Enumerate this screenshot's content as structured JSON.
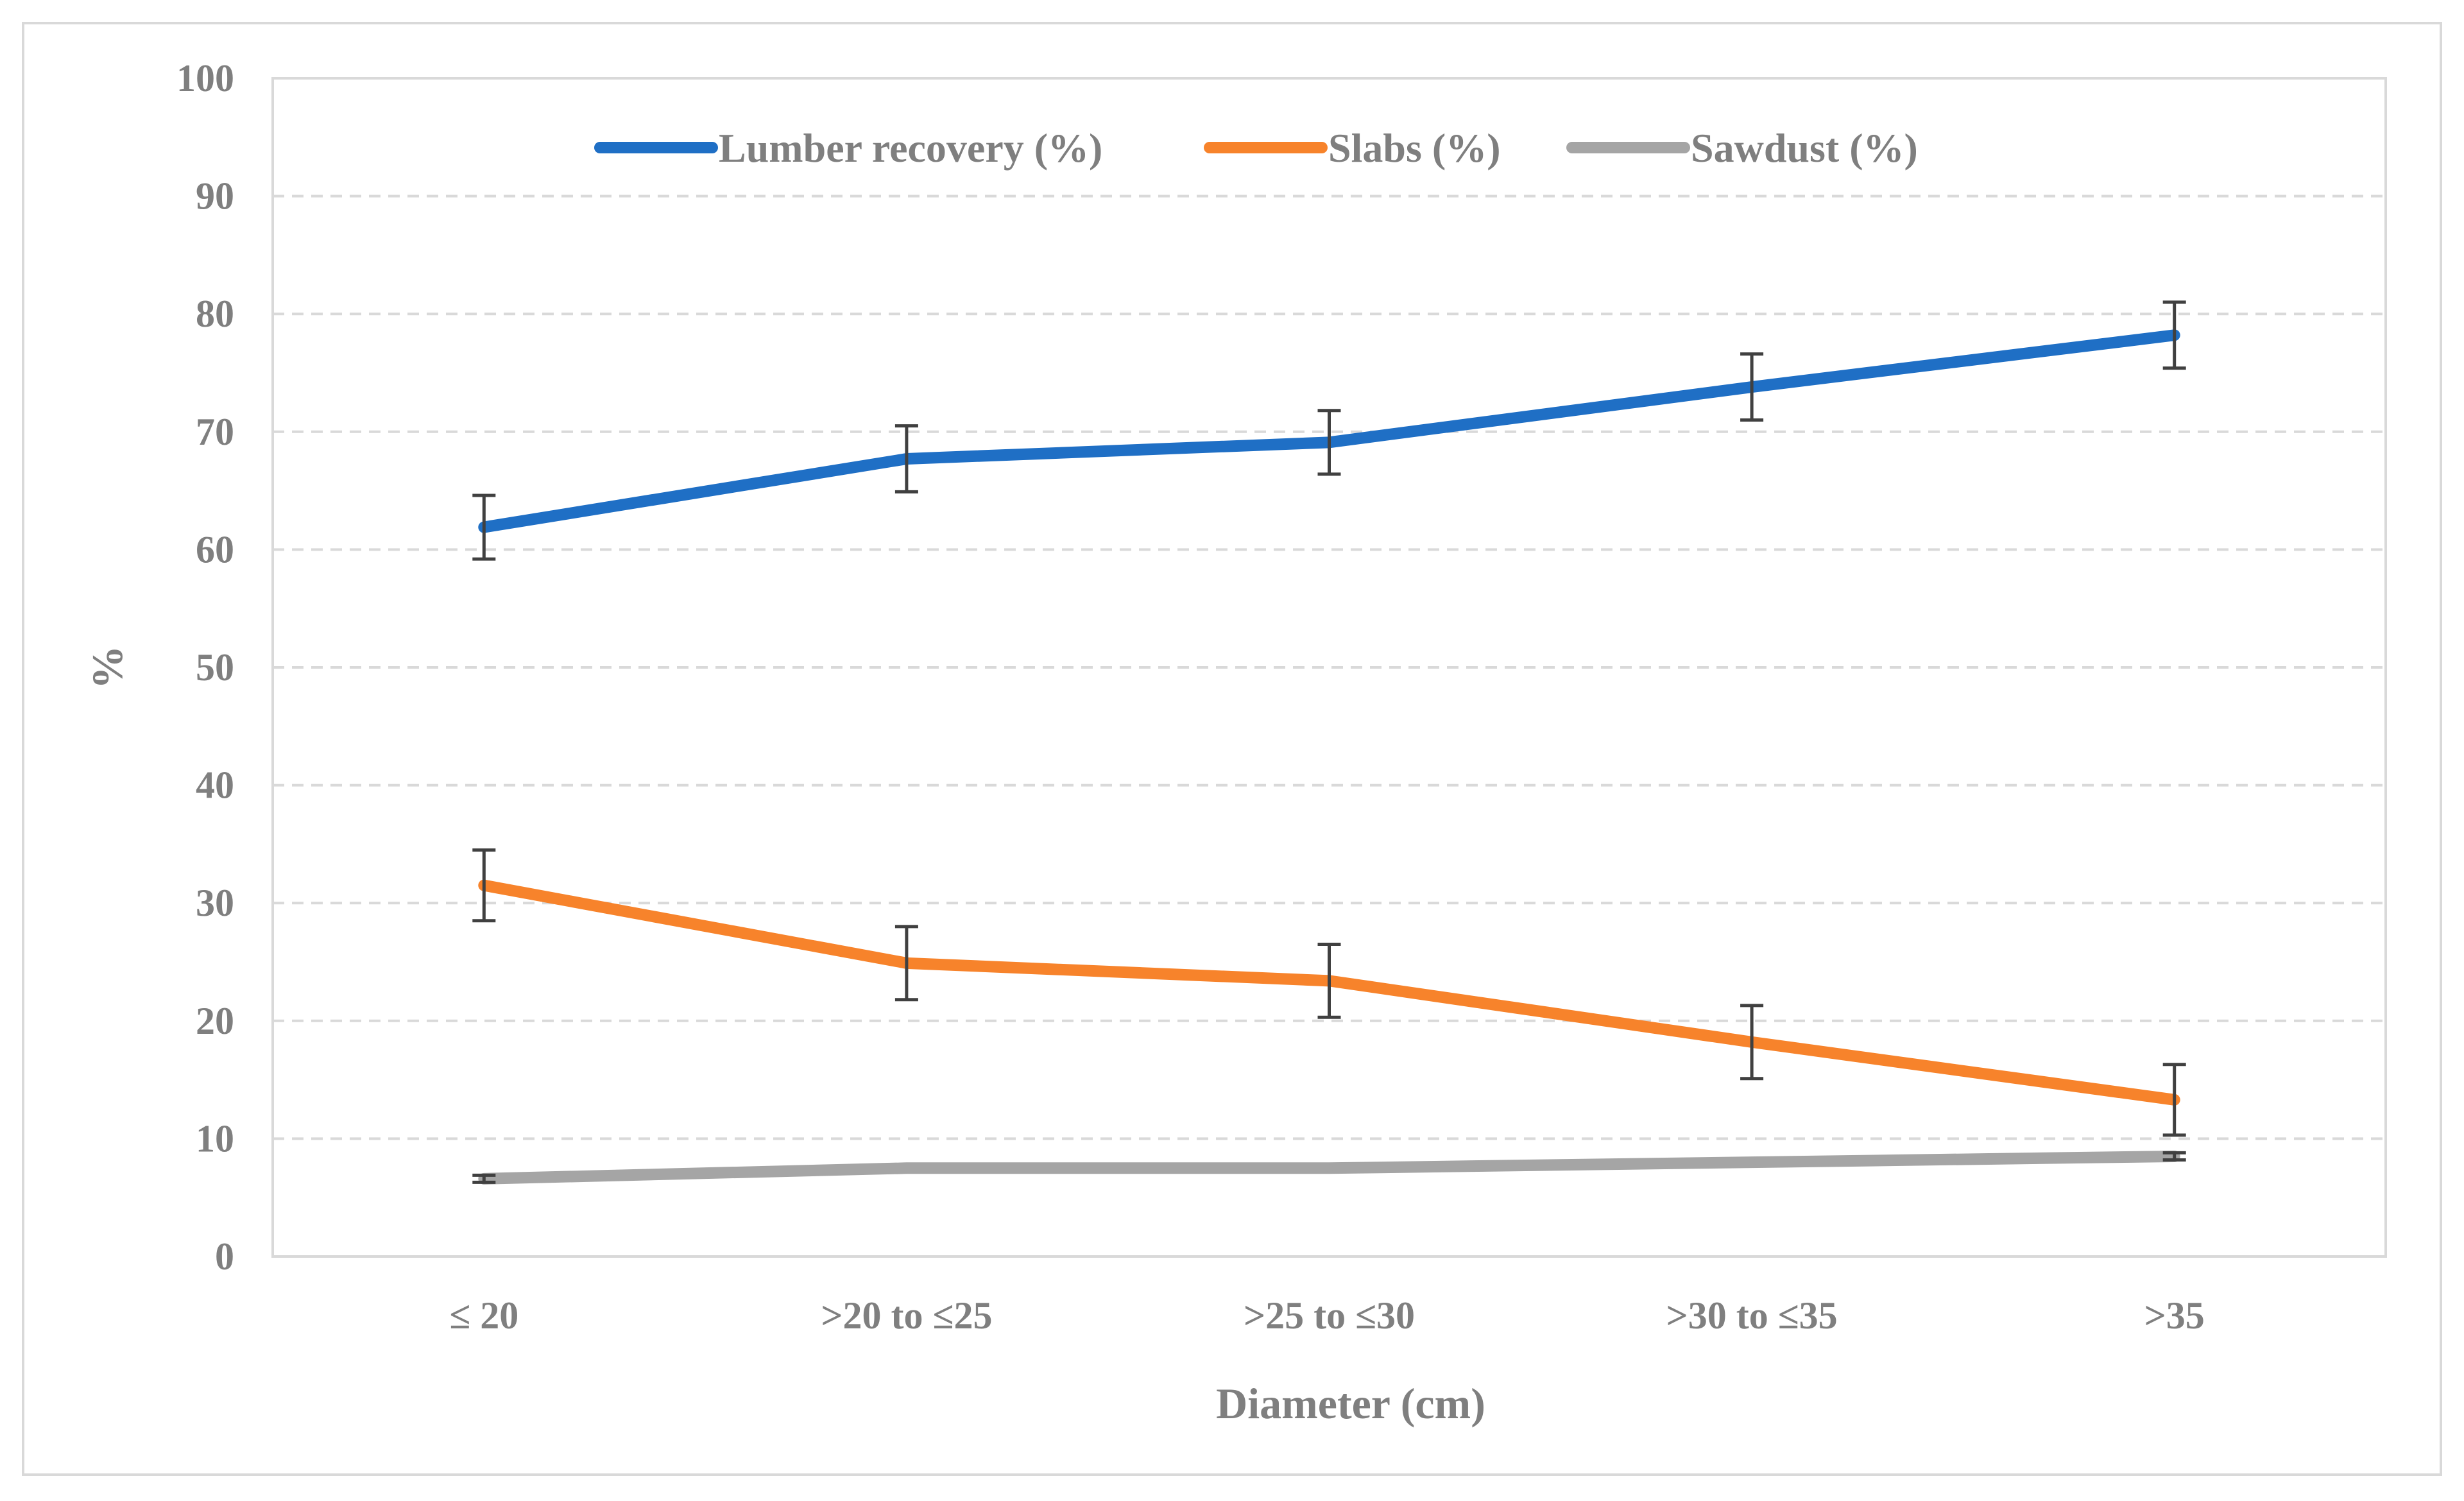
{
  "chart_data": {
    "type": "line",
    "categories": [
      "≤ 20",
      ">20 to ≤25",
      ">25 to ≤30",
      ">30 to ≤35",
      ">35"
    ],
    "series": [
      {
        "name": "Lumber recovery (%)",
        "values": [
          61.9,
          67.7,
          69.1,
          73.8,
          78.2
        ],
        "error": [
          2.7,
          2.8,
          2.7,
          2.8,
          2.8
        ],
        "color": "#1f6fc5"
      },
      {
        "name": "Slabs (%)",
        "values": [
          31.5,
          24.9,
          23.4,
          18.2,
          13.3
        ],
        "error": [
          3.0,
          3.1,
          3.1,
          3.1,
          3.0
        ],
        "color": "#f7832b"
      },
      {
        "name": "Sawdust (%)",
        "values": [
          6.6,
          7.5,
          7.5,
          8.0,
          8.5
        ],
        "error": [
          0.3,
          0.0,
          0.0,
          0.0,
          0.3
        ],
        "color": "#a5a5a5"
      }
    ],
    "xlabel": "Diameter (cm)",
    "ylabel": "%",
    "ylim": [
      0,
      100
    ],
    "yticks": [
      0,
      10,
      20,
      30,
      40,
      50,
      60,
      70,
      80,
      90,
      100
    ],
    "grid": "horizontal dashed",
    "legend_position": "top-center"
  }
}
